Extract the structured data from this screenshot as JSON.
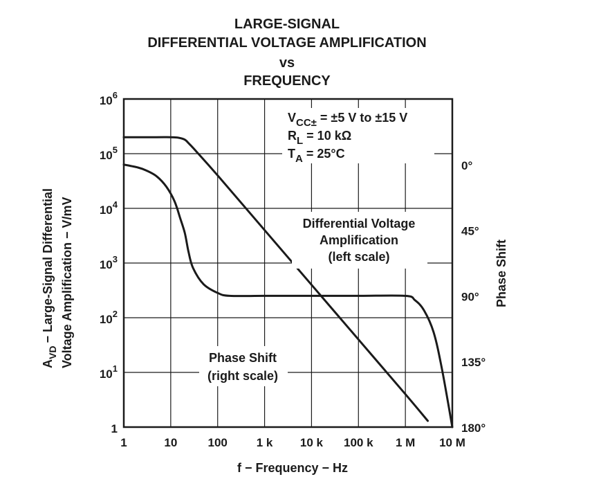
{
  "chart_data": {
    "type": "line",
    "title_lines": [
      "LARGE-SIGNAL",
      "DIFFERENTIAL VOLTAGE AMPLIFICATION",
      "vs",
      "FREQUENCY"
    ],
    "xlabel": "f − Frequency − Hz",
    "ylabel_line1": "− Large-Signal Differential",
    "ylabel_line2": "Voltage Amplification − V/mV",
    "ylabel_symbol": "A",
    "ylabel_symbol_sub": "VD",
    "y2label": "Phase Shift",
    "x_scale": "log",
    "xlim": [
      1,
      10000000
    ],
    "x_ticks": [
      {
        "value": 1,
        "label": "1"
      },
      {
        "value": 10,
        "label": "10"
      },
      {
        "value": 100,
        "label": "100"
      },
      {
        "value": 1000,
        "label": "1 k"
      },
      {
        "value": 10000,
        "label": "10 k"
      },
      {
        "value": 100000,
        "label": "100 k"
      },
      {
        "value": 1000000,
        "label": "1 M"
      },
      {
        "value": 10000000,
        "label": "10 M"
      }
    ],
    "y_scale": "log",
    "ylim": [
      1,
      1000000
    ],
    "y_ticks": [
      {
        "value": 1,
        "base": "1",
        "exp": ""
      },
      {
        "value": 10,
        "base": "10",
        "exp": "1"
      },
      {
        "value": 100,
        "base": "10",
        "exp": "2"
      },
      {
        "value": 1000,
        "base": "10",
        "exp": "3"
      },
      {
        "value": 10000,
        "base": "10",
        "exp": "4"
      },
      {
        "value": 100000,
        "base": "10",
        "exp": "5"
      },
      {
        "value": 1000000,
        "base": "10",
        "exp": "6"
      }
    ],
    "y2_scale": "linear",
    "y2lim": [
      180,
      -45
    ],
    "y2_ticks": [
      {
        "value": 0,
        "label": "0°"
      },
      {
        "value": 45,
        "label": "45°"
      },
      {
        "value": 90,
        "label": "90°"
      },
      {
        "value": 135,
        "label": "135°"
      },
      {
        "value": 180,
        "label": "180°"
      }
    ],
    "grid": true,
    "series": [
      {
        "name": "Differential Voltage Amplification",
        "axis": "left",
        "x": [
          1,
          5,
          10,
          15,
          20,
          25,
          35,
          100,
          1000,
          10000,
          100000,
          1000000,
          3000000
        ],
        "y": [
          200000,
          200000,
          200000,
          195000,
          180000,
          150000,
          110000,
          40000,
          4000,
          400,
          40,
          4,
          1.3
        ]
      },
      {
        "name": "Phase Shift",
        "axis": "right",
        "x": [
          1,
          2,
          3,
          5,
          8,
          12,
          16,
          20,
          24,
          30,
          50,
          100,
          180,
          1000,
          10000,
          100000,
          1000000,
          1600000,
          2500000,
          4000000,
          6000000,
          10000000
        ],
        "y": [
          0,
          2,
          4,
          8,
          15,
          25,
          37,
          47,
          60,
          71,
          82,
          88,
          90,
          90,
          90,
          90,
          90,
          93,
          100,
          115,
          140,
          180
        ]
      }
    ],
    "annotations": {
      "conditions": [
        {
          "main": "V",
          "sub": "CC±",
          "rest": " = ±5 V to ±15 V"
        },
        {
          "main": "R",
          "sub": "L",
          "rest": " = 10 kΩ"
        },
        {
          "main": "T",
          "sub": "A",
          "rest": " = 25°C"
        }
      ],
      "amp_label": [
        "Differential Voltage",
        "Amplification",
        "(left scale)"
      ],
      "phase_label": [
        "Phase Shift",
        "(right scale)"
      ]
    }
  }
}
